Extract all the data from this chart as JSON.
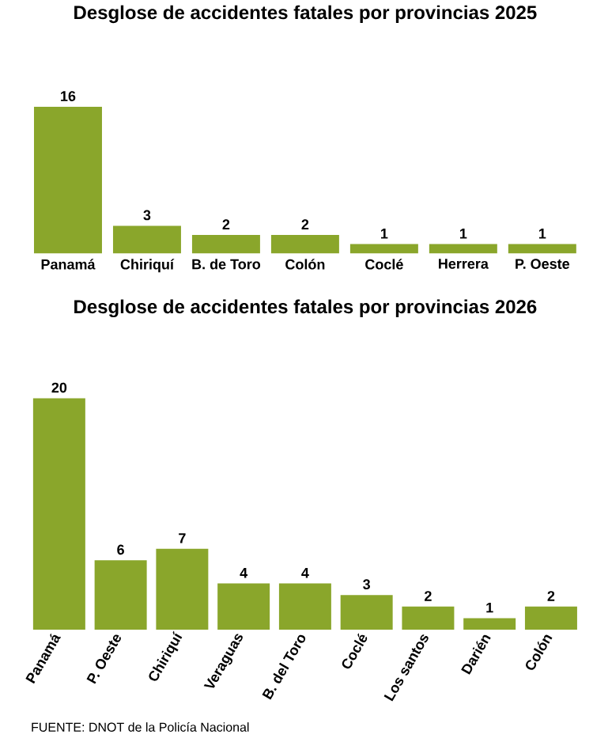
{
  "chart_data": [
    {
      "type": "bar",
      "title": "Desglose de accidentes fatales por provincias 2025",
      "categories": [
        "Panamá",
        "Chiriquí",
        "B. de Toro",
        "Colón",
        "Coclé",
        "Herrera",
        "P. Oeste"
      ],
      "values": [
        16,
        3,
        2,
        2,
        1,
        1,
        1
      ],
      "color": "#8aa62b",
      "data_labels": true
    },
    {
      "type": "bar",
      "title": "Desglose de accidentes fatales por provincias 2026",
      "categories": [
        "Panamá",
        "P. Oeste",
        "Chiriquí",
        "Veraguas",
        "B. del Toro",
        "Coclé",
        "Los santos",
        "Darién",
        "Colón"
      ],
      "values": [
        20,
        6,
        7,
        4,
        4,
        3,
        2,
        1,
        2
      ],
      "color": "#8aa62b",
      "data_labels": true,
      "annotations": [
        "FUENTE: DNOT de la Policía Nacional"
      ]
    }
  ]
}
